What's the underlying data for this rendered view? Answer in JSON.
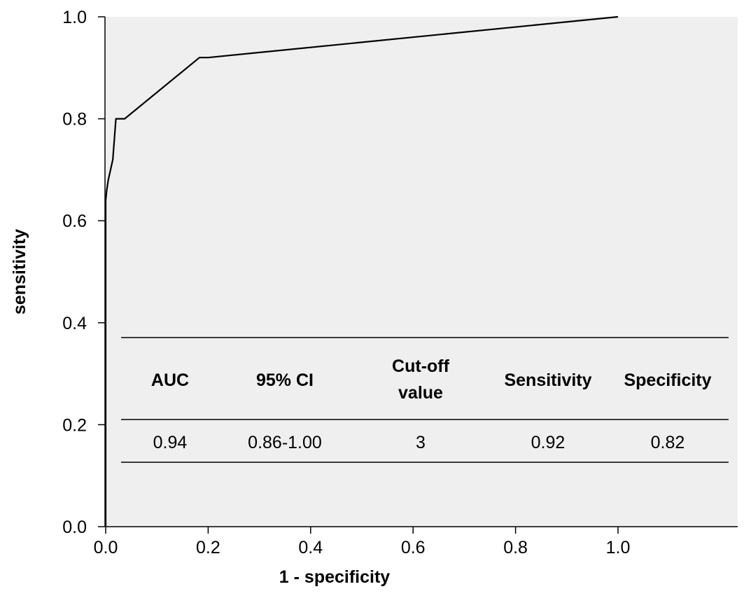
{
  "chart_data": {
    "type": "line",
    "xlabel": "1 - specificity",
    "ylabel": "sensitivity",
    "xlim": [
      0,
      1.2
    ],
    "ylim": [
      0,
      1.0
    ],
    "x_ticks": [
      "0.0",
      "0.2",
      "0.4",
      "0.6",
      "0.8",
      "1.0"
    ],
    "y_ticks": [
      "0.0",
      "0.2",
      "0.4",
      "0.6",
      "0.8",
      "1.0"
    ],
    "grid": false,
    "background": "#efefef",
    "series": [
      {
        "type": "line",
        "color": "#000000",
        "x": [
          0.0,
          0.0,
          0.002,
          0.005,
          0.014,
          0.02,
          0.037,
          0.183,
          0.2,
          1.0
        ],
        "y": [
          0.0,
          0.64,
          0.66,
          0.68,
          0.72,
          0.8,
          0.8,
          0.92,
          0.92,
          1.0
        ]
      }
    ],
    "table": {
      "headers": [
        [
          "AUC"
        ],
        [
          "95% CI"
        ],
        [
          "Cut-off",
          "value"
        ],
        [
          "Sensitivity"
        ],
        [
          "Specificity"
        ]
      ],
      "row": [
        "0.94",
        "0.86-1.00",
        "3",
        "0.92",
        "0.82"
      ]
    }
  }
}
